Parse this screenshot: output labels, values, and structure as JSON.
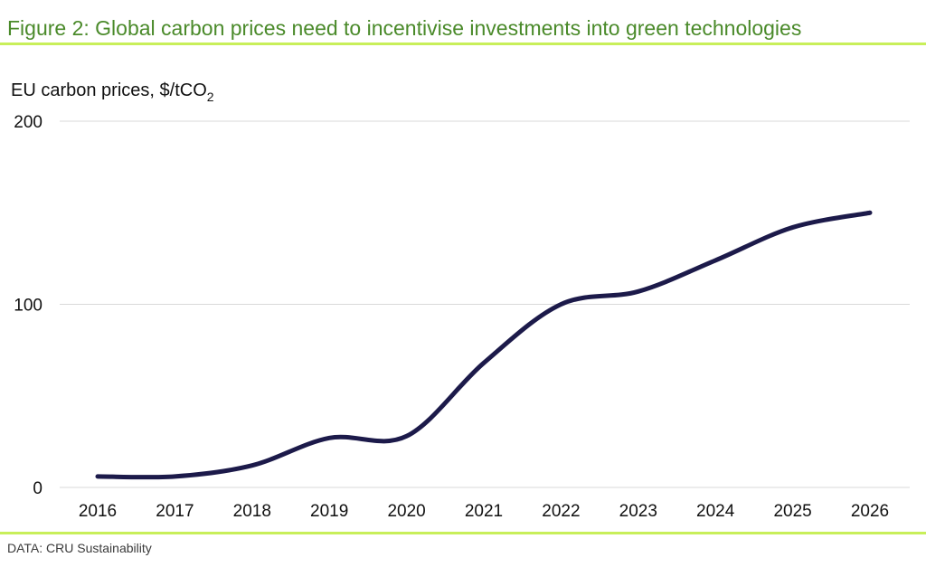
{
  "figure_title": "Figure 2: Global carbon prices need to incentivise investments into green technologies",
  "source": "DATA: CRU Sustainability",
  "colors": {
    "title": "#4a8a2a",
    "rule": "#c8ef5a",
    "line": "#1c1a4a",
    "grid": "#d9d9d9"
  },
  "chart_data": {
    "type": "line",
    "title": "",
    "ylabel": {
      "main": "EU carbon prices, $/tCO",
      "subscript": "2"
    },
    "xlabel": "",
    "categories": [
      "2016",
      "2017",
      "2018",
      "2019",
      "2020",
      "2021",
      "2022",
      "2023",
      "2024",
      "2025",
      "2026"
    ],
    "series": [
      {
        "name": "EU carbon prices",
        "values": [
          6,
          6,
          12,
          27,
          28,
          68,
          100,
          107,
          124,
          142,
          150
        ]
      }
    ],
    "ylim": [
      0,
      200
    ],
    "yticks": [
      0,
      100,
      200
    ],
    "grid": true,
    "legend": "none"
  }
}
